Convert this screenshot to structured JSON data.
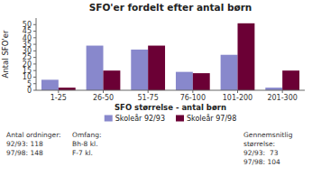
{
  "chart_data": {
    "type": "bar",
    "title": "SFO'er fordelt efter antal børn",
    "categories": [
      "1-25",
      "26-50",
      "51-75",
      "76-100",
      "101-200",
      "201-300"
    ],
    "series": [
      {
        "name": "Skoleår 92/93",
        "color": "#8888cc",
        "values": [
          8,
          34,
          31,
          14,
          27,
          2
        ]
      },
      {
        "name": "Skoleår 97/98",
        "color": "#6b0035",
        "values": [
          2,
          15,
          34,
          13,
          51,
          15
        ]
      }
    ],
    "xlabel": "SFO størrelse - antal børn",
    "ylabel": "Antal SFO'er",
    "ylim": [
      0,
      55
    ],
    "yticks": [
      0,
      5,
      10,
      15,
      20,
      25,
      30,
      35,
      40,
      45,
      50
    ],
    "grid": false,
    "legend": "bottom",
    "annotations": [
      [
        "Antal ordninger:",
        "92/93: 118",
        "97/98: 148"
      ],
      [
        "Omfang:",
        "Bh-8 kl.",
        "F-7 kl."
      ],
      [
        "Gennemsnitlig",
        "størrelse:",
        "92/93:  73",
        "97/98: 104"
      ]
    ]
  }
}
